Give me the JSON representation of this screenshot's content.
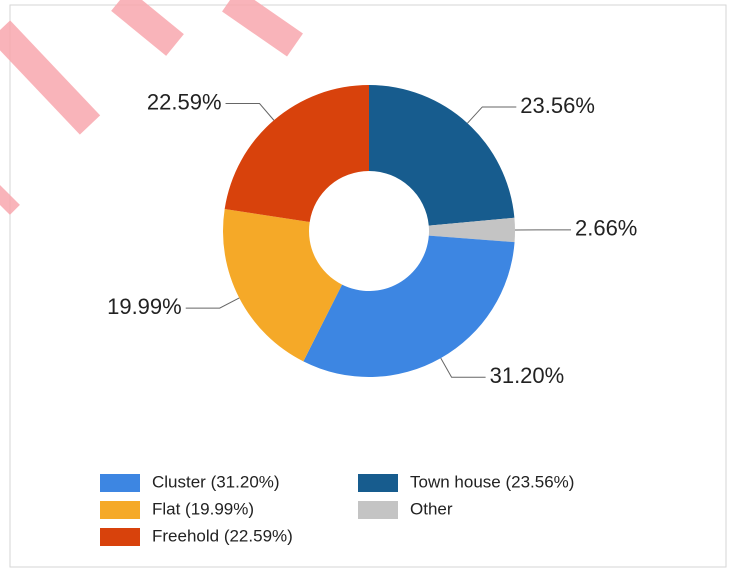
{
  "chart_data": {
    "type": "donut",
    "categories": [
      "Town house (23.56%)",
      "Other",
      "Cluster (31.20%)",
      "Flat (19.99%)",
      "Freehold (22.59%)"
    ],
    "values": [
      23.56,
      2.66,
      31.2,
      19.99,
      22.59
    ],
    "value_labels": [
      "23.56%",
      "2.66%",
      "31.20%",
      "19.99%",
      "22.59%"
    ],
    "colors": [
      "#175c8e",
      "#c4c4c4",
      "#3d86e2",
      "#f5a928",
      "#d8420c"
    ],
    "legend": "bottom"
  }
}
